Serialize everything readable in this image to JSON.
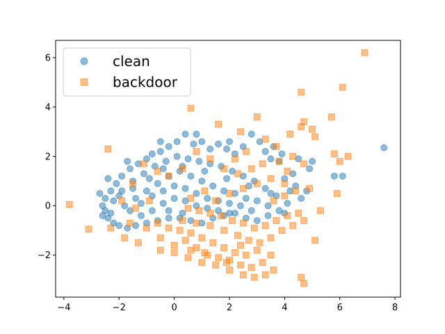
{
  "chart_data": {
    "type": "scatter",
    "title": "",
    "xlabel": "",
    "ylabel": "",
    "xlim": [
      -4.3,
      8.2
    ],
    "ylim": [
      -3.7,
      6.7
    ],
    "xticks": [
      -4,
      -2,
      0,
      2,
      4,
      6,
      8
    ],
    "yticks": [
      -2,
      0,
      2,
      4,
      6
    ],
    "xtick_labels": [
      "−4",
      "−2",
      "0",
      "2",
      "4",
      "6",
      "8"
    ],
    "ytick_labels": [
      "−2",
      "0",
      "2",
      "4",
      "6"
    ],
    "grid": false,
    "legend_position": "top-left",
    "series": [
      {
        "name": "clean",
        "marker": "circle",
        "color": "#1f77b4",
        "points": [
          [
            7.6,
            2.35
          ],
          [
            6.1,
            1.2
          ],
          [
            5.8,
            1.2
          ],
          [
            5.0,
            1.8
          ],
          [
            4.9,
            1.5
          ],
          [
            4.5,
            1.9
          ],
          [
            4.3,
            1.3
          ],
          [
            4.2,
            0.6
          ],
          [
            4.4,
            0.8
          ],
          [
            4.0,
            1.1
          ],
          [
            3.8,
            1.8
          ],
          [
            3.6,
            2.4
          ],
          [
            3.5,
            1.9
          ],
          [
            3.3,
            2.2
          ],
          [
            3.1,
            2.6
          ],
          [
            2.8,
            2.9
          ],
          [
            2.5,
            2.4
          ],
          [
            2.2,
            2.1
          ],
          [
            1.9,
            2.3
          ],
          [
            1.6,
            2.5
          ],
          [
            1.3,
            2.3
          ],
          [
            1.0,
            2.6
          ],
          [
            0.7,
            2.5
          ],
          [
            0.4,
            2.9
          ],
          [
            0.1,
            2.6
          ],
          [
            -0.2,
            2.4
          ],
          [
            -0.5,
            2.2
          ],
          [
            -0.8,
            2.1
          ],
          [
            -1.0,
            1.9
          ],
          [
            -1.3,
            1.7
          ],
          [
            -1.6,
            1.5
          ],
          [
            -1.9,
            1.2
          ],
          [
            -2.1,
            0.9
          ],
          [
            -2.3,
            0.6
          ],
          [
            -2.5,
            0.3
          ],
          [
            -2.6,
            0.0
          ],
          [
            -2.5,
            -0.2
          ],
          [
            -2.4,
            -0.5
          ],
          [
            -2.2,
            -0.7
          ],
          [
            -2.0,
            -0.8
          ],
          [
            -1.7,
            -0.9
          ],
          [
            -1.4,
            -0.8
          ],
          [
            -1.0,
            -0.7
          ],
          [
            -0.6,
            -0.6
          ],
          [
            -0.2,
            -0.5
          ],
          [
            0.2,
            -0.5
          ],
          [
            0.6,
            -0.6
          ],
          [
            1.0,
            -0.7
          ],
          [
            1.4,
            -0.5
          ],
          [
            1.8,
            -0.4
          ],
          [
            2.2,
            -0.3
          ],
          [
            2.6,
            -0.5
          ],
          [
            3.0,
            -0.6
          ],
          [
            3.4,
            -0.4
          ],
          [
            3.8,
            -0.2
          ],
          [
            4.1,
            0.1
          ],
          [
            3.7,
            0.4
          ],
          [
            3.3,
            0.7
          ],
          [
            2.9,
            1.0
          ],
          [
            2.5,
            1.2
          ],
          [
            2.1,
            1.4
          ],
          [
            1.7,
            1.6
          ],
          [
            1.3,
            1.7
          ],
          [
            0.9,
            1.8
          ],
          [
            0.5,
            1.9
          ],
          [
            0.1,
            2.0
          ],
          [
            -0.3,
            1.8
          ],
          [
            -0.7,
            1.6
          ],
          [
            -1.1,
            1.3
          ],
          [
            -1.5,
            1.0
          ],
          [
            -1.9,
            0.6
          ],
          [
            -2.2,
            0.2
          ],
          [
            -1.8,
            0.0
          ],
          [
            -1.4,
            0.3
          ],
          [
            -1.0,
            0.6
          ],
          [
            -0.6,
            0.9
          ],
          [
            -0.2,
            1.2
          ],
          [
            0.2,
            1.4
          ],
          [
            0.6,
            1.2
          ],
          [
            1.0,
            1.0
          ],
          [
            1.4,
            0.8
          ],
          [
            1.8,
            0.6
          ],
          [
            2.2,
            0.5
          ],
          [
            2.6,
            0.3
          ],
          [
            3.0,
            0.2
          ],
          [
            3.4,
            0.0
          ],
          [
            2.8,
            -0.2
          ],
          [
            2.4,
            0.0
          ],
          [
            2.0,
            0.1
          ],
          [
            1.6,
            0.2
          ],
          [
            1.2,
            0.3
          ],
          [
            0.8,
            0.5
          ],
          [
            0.4,
            0.7
          ],
          [
            0.0,
            0.8
          ],
          [
            -0.4,
            0.6
          ],
          [
            -0.8,
            0.4
          ],
          [
            -1.2,
            0.1
          ],
          [
            -1.6,
            -0.2
          ],
          [
            -1.2,
            -0.4
          ],
          [
            -0.8,
            -0.2
          ],
          [
            -0.4,
            0.1
          ],
          [
            0.0,
            0.3
          ],
          [
            0.4,
            0.2
          ],
          [
            0.8,
            0.0
          ],
          [
            1.2,
            -0.1
          ],
          [
            1.6,
            -0.2
          ],
          [
            2.0,
            -0.3
          ],
          [
            -0.2,
            -0.2
          ],
          [
            0.3,
            -0.3
          ],
          [
            -2.3,
            -0.3
          ],
          [
            -2.0,
            0.4
          ],
          [
            -1.5,
            0.7
          ],
          [
            -0.9,
            1.1
          ],
          [
            -0.4,
            1.5
          ],
          [
            0.3,
            1.6
          ],
          [
            1.1,
            1.4
          ],
          [
            1.9,
            1.1
          ],
          [
            2.7,
            0.8
          ],
          [
            3.5,
            0.5
          ],
          [
            4.0,
            -0.3
          ],
          [
            4.6,
            0.3
          ],
          [
            4.8,
            0.6
          ],
          [
            3.9,
            2.1
          ],
          [
            2.0,
            2.6
          ],
          [
            0.8,
            2.9
          ],
          [
            -0.5,
            2.6
          ],
          [
            -1.7,
            1.8
          ],
          [
            -2.4,
            1.1
          ],
          [
            -2.7,
            0.5
          ],
          [
            -2.6,
            -0.4
          ]
        ]
      },
      {
        "name": "backdoor",
        "marker": "square",
        "color": "#ff7f0e",
        "points": [
          [
            6.9,
            6.2
          ],
          [
            6.1,
            4.8
          ],
          [
            4.6,
            4.6
          ],
          [
            5.7,
            3.6
          ],
          [
            4.7,
            3.4
          ],
          [
            4.6,
            3.2
          ],
          [
            5.0,
            3.1
          ],
          [
            4.2,
            2.9
          ],
          [
            5.1,
            2.8
          ],
          [
            1.6,
            3.3
          ],
          [
            0.6,
            3.95
          ],
          [
            -3.8,
            0.05
          ],
          [
            -3.1,
            -0.95
          ],
          [
            -2.4,
            2.3
          ],
          [
            3.0,
            3.6
          ],
          [
            2.4,
            3.0
          ],
          [
            3.3,
            2.7
          ],
          [
            3.7,
            2.4
          ],
          [
            4.3,
            2.0
          ],
          [
            3.8,
            1.8
          ],
          [
            5.8,
            2.1
          ],
          [
            6.0,
            1.8
          ],
          [
            6.3,
            2.0
          ],
          [
            4.7,
            1.7
          ],
          [
            4.1,
            1.4
          ],
          [
            5.9,
            0.5
          ],
          [
            5.3,
            -0.2
          ],
          [
            5.1,
            -1.4
          ],
          [
            4.6,
            -2.9
          ],
          [
            4.7,
            -3.15
          ],
          [
            3.6,
            -2.6
          ],
          [
            3.3,
            -2.8
          ],
          [
            2.9,
            -2.9
          ],
          [
            2.5,
            -2.8
          ],
          [
            2.0,
            -2.6
          ],
          [
            1.5,
            -2.4
          ],
          [
            1.0,
            -2.3
          ],
          [
            0.5,
            -2.1
          ],
          [
            0.0,
            -1.9
          ],
          [
            -0.5,
            -1.8
          ],
          [
            -1.3,
            -1.5
          ],
          [
            -1.8,
            -1.3
          ],
          [
            -2.3,
            -0.9
          ],
          [
            -1.0,
            -0.9
          ],
          [
            -0.5,
            -1.3
          ],
          [
            0.0,
            -1.6
          ],
          [
            0.4,
            -1.4
          ],
          [
            0.8,
            -1.7
          ],
          [
            1.2,
            -2.0
          ],
          [
            1.6,
            -2.1
          ],
          [
            2.0,
            -2.2
          ],
          [
            2.4,
            -2.4
          ],
          [
            2.8,
            -2.5
          ],
          [
            3.2,
            -2.3
          ],
          [
            3.5,
            -2.0
          ],
          [
            3.0,
            -1.8
          ],
          [
            2.6,
            -2.0
          ],
          [
            2.2,
            -1.9
          ],
          [
            1.8,
            -1.7
          ],
          [
            1.4,
            -1.5
          ],
          [
            1.0,
            -1.3
          ],
          [
            0.6,
            -1.1
          ],
          [
            0.2,
            -1.0
          ],
          [
            -0.2,
            -0.9
          ],
          [
            -0.6,
            -0.7
          ],
          [
            0.3,
            -0.6
          ],
          [
            0.8,
            -0.7
          ],
          [
            1.3,
            -0.8
          ],
          [
            1.8,
            -1.0
          ],
          [
            2.3,
            -1.2
          ],
          [
            2.7,
            -1.4
          ],
          [
            3.1,
            -1.5
          ],
          [
            3.5,
            -1.3
          ],
          [
            3.9,
            -1.0
          ],
          [
            4.3,
            -0.8
          ],
          [
            4.7,
            -0.6
          ],
          [
            4.5,
            -0.3
          ],
          [
            4.1,
            -0.4
          ],
          [
            3.7,
            -0.6
          ],
          [
            3.3,
            -0.8
          ],
          [
            2.9,
            -0.9
          ],
          [
            2.5,
            -0.7
          ],
          [
            2.1,
            -0.6
          ],
          [
            1.7,
            -0.4
          ],
          [
            1.3,
            -0.3
          ],
          [
            0.9,
            -0.2
          ],
          [
            0.5,
            -0.1
          ],
          [
            1.5,
            0.2
          ],
          [
            2.0,
            0.5
          ],
          [
            2.5,
            0.7
          ],
          [
            3.0,
            0.9
          ],
          [
            3.5,
            1.1
          ],
          [
            4.0,
            0.9
          ],
          [
            4.4,
            0.6
          ],
          [
            4.9,
            0.7
          ],
          [
            3.2,
            1.7
          ],
          [
            2.8,
            1.5
          ],
          [
            2.3,
            1.3
          ],
          [
            1.8,
            1.5
          ],
          [
            1.3,
            1.9
          ],
          [
            0.8,
            2.2
          ],
          [
            0.3,
            1.5
          ],
          [
            -0.2,
            1.2
          ],
          [
            -0.6,
            1.4
          ],
          [
            -1.1,
            1.7
          ],
          [
            -1.5,
            0.9
          ],
          [
            -1.9,
            0.2
          ],
          [
            -1.4,
            -0.1
          ],
          [
            -0.9,
            0.2
          ],
          [
            -1.6,
            -0.7
          ],
          [
            2.2,
            1.9
          ],
          [
            2.6,
            2.2
          ],
          [
            1.1,
            0.6
          ],
          [
            0.6,
            0.3
          ],
          [
            3.6,
            0.2
          ],
          [
            4.0,
            0.4
          ],
          [
            2.4,
            -1.6
          ],
          [
            1.9,
            -2.3
          ],
          [
            1.1,
            -1.9
          ],
          [
            0.6,
            -1.8
          ]
        ]
      }
    ]
  }
}
